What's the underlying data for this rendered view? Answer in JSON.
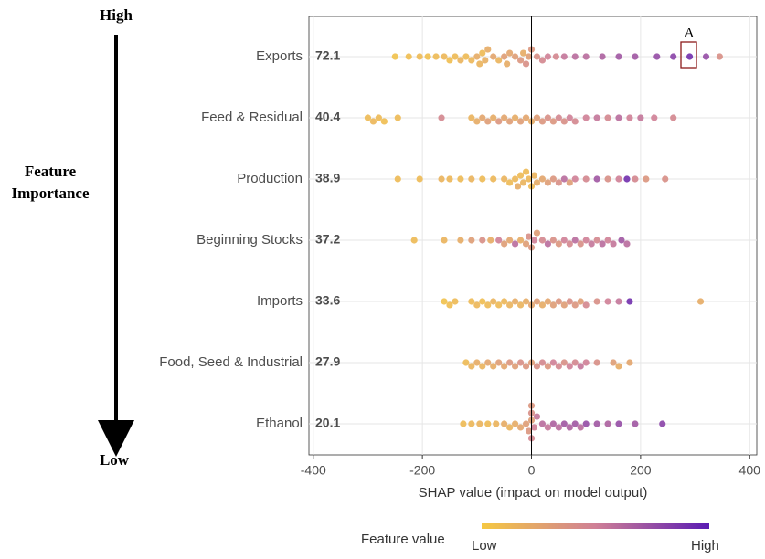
{
  "chart_data": {
    "type": "beeswarm",
    "x_label": "SHAP value (impact on model output)",
    "categories": [
      "Exports",
      "Feed & Residual",
      "Production",
      "Beginning Stocks",
      "Imports",
      "Food, Seed & Industrial",
      "Ethanol"
    ],
    "importance": [
      72.1,
      40.4,
      38.9,
      37.2,
      33.6,
      27.9,
      20.1
    ],
    "points": [
      {
        "values": [
          -250,
          -225,
          -205,
          -190,
          -175,
          -160,
          -150,
          -140,
          -130,
          -120,
          -110,
          -100,
          -95,
          -90,
          -85,
          -80,
          -70,
          -60,
          -50,
          -45,
          -40,
          -30,
          -20,
          -15,
          -10,
          -5,
          0,
          10,
          20,
          30,
          45,
          60,
          80,
          100,
          130,
          160,
          190,
          230,
          260,
          290,
          320,
          345
        ],
        "feature_values": [
          0.05,
          0.08,
          0.1,
          0.06,
          0.1,
          0.12,
          0.08,
          0.1,
          0.15,
          0.1,
          0.12,
          0.2,
          0.15,
          0.1,
          0.18,
          0.2,
          0.25,
          0.15,
          0.3,
          0.2,
          0.25,
          0.3,
          0.35,
          0.2,
          0.4,
          0.3,
          0.35,
          0.4,
          0.45,
          0.5,
          0.45,
          0.55,
          0.6,
          0.6,
          0.65,
          0.7,
          0.7,
          0.75,
          0.8,
          0.9,
          0.75,
          0.4
        ]
      },
      {
        "values": [
          -300,
          -290,
          -280,
          -270,
          -245,
          -165,
          -110,
          -100,
          -90,
          -80,
          -70,
          -60,
          -50,
          -40,
          -30,
          -20,
          -10,
          0,
          10,
          20,
          30,
          40,
          50,
          60,
          70,
          80,
          100,
          120,
          140,
          160,
          180,
          200,
          225,
          260
        ],
        "feature_values": [
          0.1,
          0.12,
          0.1,
          0.08,
          0.1,
          0.45,
          0.15,
          0.2,
          0.25,
          0.3,
          0.2,
          0.35,
          0.25,
          0.3,
          0.2,
          0.3,
          0.25,
          0.2,
          0.3,
          0.35,
          0.4,
          0.35,
          0.45,
          0.4,
          0.5,
          0.45,
          0.5,
          0.55,
          0.45,
          0.6,
          0.5,
          0.55,
          0.5,
          0.45
        ]
      },
      {
        "values": [
          -245,
          -205,
          -165,
          -150,
          -130,
          -110,
          -90,
          -70,
          -50,
          -40,
          -30,
          -25,
          -20,
          -15,
          -10,
          -5,
          0,
          5,
          10,
          20,
          30,
          40,
          50,
          60,
          70,
          80,
          100,
          120,
          140,
          160,
          175,
          190,
          210,
          245
        ],
        "feature_values": [
          0.1,
          0.1,
          0.15,
          0.12,
          0.1,
          0.15,
          0.1,
          0.12,
          0.15,
          0.1,
          0.12,
          0.2,
          0.1,
          0.15,
          0.1,
          0.12,
          0.1,
          0.15,
          0.2,
          0.25,
          0.3,
          0.35,
          0.4,
          0.6,
          0.3,
          0.5,
          0.45,
          0.7,
          0.4,
          0.5,
          0.9,
          0.45,
          0.35,
          0.4
        ]
      },
      {
        "values": [
          -215,
          -160,
          -130,
          -110,
          -90,
          -75,
          -60,
          -50,
          -40,
          -30,
          -20,
          -10,
          -5,
          0,
          5,
          10,
          20,
          30,
          40,
          50,
          60,
          70,
          80,
          90,
          100,
          110,
          120,
          130,
          140,
          150,
          165,
          175
        ],
        "feature_values": [
          0.1,
          0.15,
          0.2,
          0.3,
          0.4,
          0.2,
          0.5,
          0.3,
          0.25,
          0.6,
          0.2,
          0.3,
          0.4,
          0.35,
          0.5,
          0.3,
          0.45,
          0.6,
          0.4,
          0.35,
          0.5,
          0.45,
          0.6,
          0.4,
          0.5,
          0.55,
          0.45,
          0.6,
          0.5,
          0.55,
          0.7,
          0.6
        ]
      },
      {
        "values": [
          -160,
          -150,
          -140,
          -110,
          -100,
          -90,
          -80,
          -70,
          -60,
          -50,
          -40,
          -30,
          -20,
          -10,
          0,
          10,
          20,
          30,
          40,
          50,
          60,
          70,
          80,
          90,
          100,
          120,
          140,
          160,
          180,
          310
        ],
        "feature_values": [
          0.05,
          0.08,
          0.1,
          0.1,
          0.12,
          0.08,
          0.1,
          0.15,
          0.1,
          0.12,
          0.15,
          0.2,
          0.15,
          0.2,
          0.25,
          0.3,
          0.2,
          0.25,
          0.3,
          0.35,
          0.3,
          0.4,
          0.35,
          0.3,
          0.45,
          0.4,
          0.5,
          0.55,
          0.9,
          0.2
        ]
      },
      {
        "values": [
          -120,
          -110,
          -100,
          -90,
          -80,
          -70,
          -60,
          -50,
          -40,
          -30,
          -20,
          -10,
          0,
          10,
          20,
          30,
          40,
          50,
          60,
          70,
          80,
          90,
          100,
          120,
          150,
          160,
          180
        ],
        "feature_values": [
          0.1,
          0.15,
          0.2,
          0.15,
          0.25,
          0.2,
          0.3,
          0.25,
          0.35,
          0.3,
          0.4,
          0.35,
          0.3,
          0.4,
          0.45,
          0.35,
          0.5,
          0.45,
          0.4,
          0.5,
          0.45,
          0.55,
          0.5,
          0.4,
          0.3,
          0.2,
          0.25
        ]
      },
      {
        "values": [
          -125,
          -110,
          -95,
          -80,
          -65,
          -50,
          -40,
          -30,
          -20,
          -10,
          -5,
          0,
          0,
          0,
          0,
          5,
          10,
          20,
          30,
          40,
          50,
          60,
          70,
          80,
          90,
          100,
          120,
          140,
          160,
          190,
          240
        ],
        "feature_values": [
          0.1,
          0.12,
          0.15,
          0.1,
          0.15,
          0.2,
          0.15,
          0.2,
          0.25,
          0.3,
          0.35,
          0.3,
          0.4,
          0.45,
          0.35,
          0.5,
          0.55,
          0.6,
          0.55,
          0.65,
          0.6,
          0.7,
          0.65,
          0.7,
          0.6,
          0.75,
          0.7,
          0.65,
          0.75,
          0.7,
          0.8
        ]
      }
    ],
    "colormap": [
      "#f5c842",
      "#cf7f96",
      "#5a1bb3"
    ],
    "xlim": [
      -408,
      413
    ],
    "xticks": [
      -400,
      -200,
      0,
      200,
      400
    ],
    "grid": true,
    "importance_top": "High",
    "importance_bottom": "Low",
    "importance_label": "Feature Importance",
    "annotation": "A",
    "colorbar_label": "Feature value",
    "colorbar_low": "Low",
    "colorbar_high": "High"
  }
}
